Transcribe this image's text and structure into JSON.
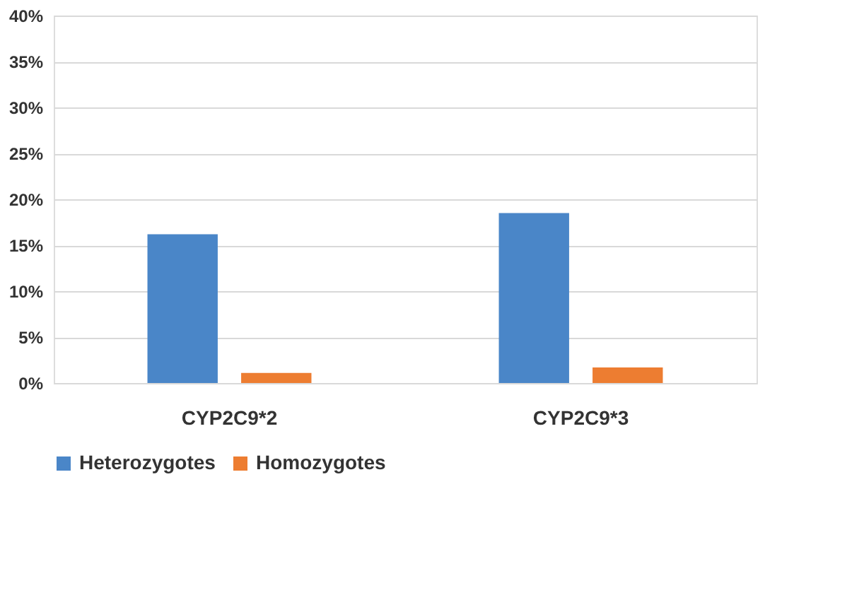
{
  "chart_data": {
    "type": "bar",
    "categories": [
      "CYP2C9*2",
      "CYP2C9*3"
    ],
    "series": [
      {
        "name": "Heterozygotes",
        "color": "#4a86c8",
        "values": [
          16.2,
          18.5
        ]
      },
      {
        "name": "Homozygotes",
        "color": "#ed7d31",
        "values": [
          1.1,
          1.7
        ]
      }
    ],
    "ylim": [
      0,
      40
    ],
    "yticks": [
      {
        "value": 0,
        "label": "0%"
      },
      {
        "value": 5,
        "label": "5%"
      },
      {
        "value": 10,
        "label": "10%"
      },
      {
        "value": 15,
        "label": "15%"
      },
      {
        "value": 20,
        "label": "20%"
      },
      {
        "value": 25,
        "label": "25%"
      },
      {
        "value": 30,
        "label": "30%"
      },
      {
        "value": 35,
        "label": "35%"
      },
      {
        "value": 40,
        "label": "40%"
      }
    ],
    "grid": "y",
    "legend": "bottom"
  }
}
